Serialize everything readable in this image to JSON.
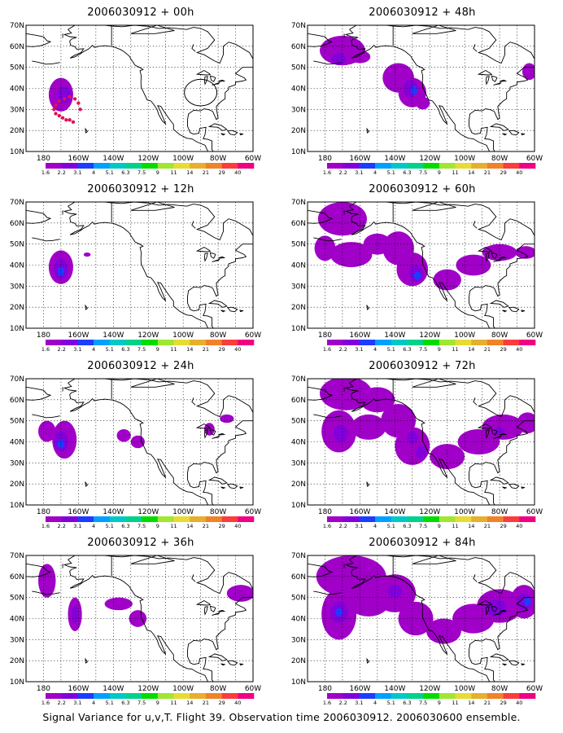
{
  "caption": "Signal Variance for u,v,T. Flight 39. Observation time 2006030912. 2006030600 ensemble.",
  "axes": {
    "lat_labels": [
      "70N",
      "60N",
      "50N",
      "40N",
      "30N",
      "20N",
      "10N"
    ],
    "lon_labels": [
      "180",
      "160W",
      "140W",
      "120W",
      "100W",
      "80W",
      "60W"
    ]
  },
  "colorbar": {
    "labels": [
      "1.6",
      "2.2",
      "3.1",
      "4",
      "5.1",
      "6.3",
      "7.5",
      "9",
      "11",
      "14",
      "21",
      "29",
      "40"
    ],
    "colors": [
      "#a000c8",
      "#8200dc",
      "#1e3cff",
      "#00a0ff",
      "#00c8c8",
      "#00d28c",
      "#00dc00",
      "#a0e632",
      "#e6dc32",
      "#e6af2d",
      "#f08228",
      "#fa3c3c",
      "#f00082"
    ]
  },
  "panels": [
    {
      "id": "p00",
      "title": "2006030912 + 00h",
      "col": 0,
      "row": 0
    },
    {
      "id": "p12",
      "title": "2006030912 + 12h",
      "col": 0,
      "row": 1
    },
    {
      "id": "p24",
      "title": "2006030912 + 24h",
      "col": 0,
      "row": 2
    },
    {
      "id": "p36",
      "title": "2006030912 + 36h",
      "col": 0,
      "row": 3
    },
    {
      "id": "p48",
      "title": "2006030912 + 48h",
      "col": 1,
      "row": 0
    },
    {
      "id": "p60",
      "title": "2006030912 + 60h",
      "col": 1,
      "row": 1
    },
    {
      "id": "p72",
      "title": "2006030912 + 72h",
      "col": 1,
      "row": 2
    },
    {
      "id": "p84",
      "title": "2006030912 + 84h",
      "col": 1,
      "row": 3
    }
  ],
  "fields": {
    "p00": [
      {
        "lon": -170,
        "lat": 37,
        "rx": 7,
        "ry": 8,
        "lvl": 0
      },
      {
        "lon": -168,
        "lat": 37,
        "rx": 4,
        "ry": 4,
        "lvl": 1
      }
    ],
    "p12": [
      {
        "lon": -170,
        "lat": 39,
        "rx": 7,
        "ry": 8,
        "lvl": 0
      },
      {
        "lon": -170,
        "lat": 38,
        "rx": 4,
        "ry": 5,
        "lvl": 1
      },
      {
        "lon": -170,
        "lat": 37,
        "rx": 2,
        "ry": 2,
        "lvl": 2
      },
      {
        "lon": -155,
        "lat": 45,
        "rx": 2,
        "ry": 1,
        "lvl": 0
      }
    ],
    "p24": [
      {
        "lon": -178,
        "lat": 45,
        "rx": 5,
        "ry": 5,
        "lvl": 0
      },
      {
        "lon": -168,
        "lat": 41,
        "rx": 7,
        "ry": 9,
        "lvl": 0
      },
      {
        "lon": -170,
        "lat": 40,
        "rx": 4,
        "ry": 5,
        "lvl": 1
      },
      {
        "lon": -170,
        "lat": 39,
        "rx": 2,
        "ry": 2,
        "lvl": 2
      },
      {
        "lon": -134,
        "lat": 43,
        "rx": 4,
        "ry": 3,
        "lvl": 0
      },
      {
        "lon": -126,
        "lat": 40,
        "rx": 4,
        "ry": 3,
        "lvl": 0
      },
      {
        "lon": -85,
        "lat": 46,
        "rx": 3,
        "ry": 3,
        "lvl": 0
      },
      {
        "lon": -75,
        "lat": 51,
        "rx": 4,
        "ry": 2,
        "lvl": 0
      }
    ],
    "p36": [
      {
        "lon": -178,
        "lat": 58,
        "rx": 5,
        "ry": 8,
        "lvl": 0
      },
      {
        "lon": -162,
        "lat": 42,
        "rx": 4,
        "ry": 8,
        "lvl": 0
      },
      {
        "lon": -162,
        "lat": 42,
        "rx": 2,
        "ry": 4,
        "lvl": 1
      },
      {
        "lon": -137,
        "lat": 47,
        "rx": 8,
        "ry": 3,
        "lvl": 0
      },
      {
        "lon": -126,
        "lat": 40,
        "rx": 5,
        "ry": 4,
        "lvl": 0
      },
      {
        "lon": -67,
        "lat": 52,
        "rx": 8,
        "ry": 4,
        "lvl": 0
      }
    ],
    "p48": [
      {
        "lon": -170,
        "lat": 58,
        "rx": 13,
        "ry": 7,
        "lvl": 0
      },
      {
        "lon": -160,
        "lat": 55,
        "rx": 6,
        "ry": 3,
        "lvl": 0
      },
      {
        "lon": -172,
        "lat": 54,
        "rx": 4,
        "ry": 3,
        "lvl": 1
      },
      {
        "lon": -138,
        "lat": 45,
        "rx": 9,
        "ry": 7,
        "lvl": 0
      },
      {
        "lon": -130,
        "lat": 38,
        "rx": 8,
        "ry": 7,
        "lvl": 0
      },
      {
        "lon": -131,
        "lat": 40,
        "rx": 4,
        "ry": 4,
        "lvl": 1
      },
      {
        "lon": -129,
        "lat": 39,
        "rx": 2,
        "ry": 2,
        "lvl": 2
      },
      {
        "lon": -124,
        "lat": 33,
        "rx": 4,
        "ry": 3,
        "lvl": 0
      },
      {
        "lon": -63,
        "lat": 48,
        "rx": 4,
        "ry": 4,
        "lvl": 0
      }
    ],
    "p60": [
      {
        "lon": -170,
        "lat": 62,
        "rx": 14,
        "ry": 8,
        "lvl": 0
      },
      {
        "lon": -180,
        "lat": 48,
        "rx": 6,
        "ry": 6,
        "lvl": 0
      },
      {
        "lon": -165,
        "lat": 45,
        "rx": 12,
        "ry": 6,
        "lvl": 0
      },
      {
        "lon": -150,
        "lat": 50,
        "rx": 8,
        "ry": 5,
        "lvl": 0
      },
      {
        "lon": -138,
        "lat": 48,
        "rx": 9,
        "ry": 8,
        "lvl": 0
      },
      {
        "lon": -130,
        "lat": 38,
        "rx": 9,
        "ry": 8,
        "lvl": 0
      },
      {
        "lon": -128,
        "lat": 36,
        "rx": 4,
        "ry": 4,
        "lvl": 1
      },
      {
        "lon": -127,
        "lat": 35,
        "rx": 2,
        "ry": 2,
        "lvl": 2
      },
      {
        "lon": -110,
        "lat": 33,
        "rx": 8,
        "ry": 5,
        "lvl": 0
      },
      {
        "lon": -95,
        "lat": 40,
        "rx": 10,
        "ry": 5,
        "lvl": 0
      },
      {
        "lon": -80,
        "lat": 46,
        "rx": 10,
        "ry": 4,
        "lvl": 0
      },
      {
        "lon": -65,
        "lat": 46,
        "rx": 6,
        "ry": 3,
        "lvl": 0
      }
    ],
    "p72": [
      {
        "lon": -168,
        "lat": 63,
        "rx": 15,
        "ry": 8,
        "lvl": 0
      },
      {
        "lon": -150,
        "lat": 60,
        "rx": 10,
        "ry": 6,
        "lvl": 0
      },
      {
        "lon": -172,
        "lat": 45,
        "rx": 10,
        "ry": 10,
        "lvl": 0
      },
      {
        "lon": -171,
        "lat": 44,
        "rx": 4,
        "ry": 4,
        "lvl": 1
      },
      {
        "lon": -155,
        "lat": 47,
        "rx": 10,
        "ry": 6,
        "lvl": 0
      },
      {
        "lon": -138,
        "lat": 50,
        "rx": 10,
        "ry": 8,
        "lvl": 0
      },
      {
        "lon": -130,
        "lat": 38,
        "rx": 10,
        "ry": 9,
        "lvl": 0
      },
      {
        "lon": -130,
        "lat": 42,
        "rx": 3,
        "ry": 3,
        "lvl": 1
      },
      {
        "lon": -125,
        "lat": 35,
        "rx": 3,
        "ry": 3,
        "lvl": 1
      },
      {
        "lon": -110,
        "lat": 33,
        "rx": 10,
        "ry": 6,
        "lvl": 0
      },
      {
        "lon": -92,
        "lat": 40,
        "rx": 12,
        "ry": 6,
        "lvl": 0
      },
      {
        "lon": -78,
        "lat": 47,
        "rx": 12,
        "ry": 6,
        "lvl": 0
      },
      {
        "lon": -64,
        "lat": 49,
        "rx": 6,
        "ry": 5,
        "lvl": 0
      },
      {
        "lon": -80,
        "lat": 45,
        "rx": 3,
        "ry": 2,
        "lvl": 1
      }
    ],
    "p84": [
      {
        "lon": -165,
        "lat": 60,
        "rx": 20,
        "ry": 10,
        "lvl": 0
      },
      {
        "lon": -172,
        "lat": 42,
        "rx": 10,
        "ry": 12,
        "lvl": 0
      },
      {
        "lon": -172,
        "lat": 43,
        "rx": 5,
        "ry": 5,
        "lvl": 1
      },
      {
        "lon": -172,
        "lat": 43,
        "rx": 2,
        "ry": 2,
        "lvl": 2
      },
      {
        "lon": -155,
        "lat": 48,
        "rx": 12,
        "ry": 7,
        "lvl": 0
      },
      {
        "lon": -140,
        "lat": 52,
        "rx": 12,
        "ry": 9,
        "lvl": 0
      },
      {
        "lon": -140,
        "lat": 53,
        "rx": 4,
        "ry": 3,
        "lvl": 1
      },
      {
        "lon": -128,
        "lat": 40,
        "rx": 10,
        "ry": 8,
        "lvl": 0
      },
      {
        "lon": -112,
        "lat": 34,
        "rx": 10,
        "ry": 6,
        "lvl": 0
      },
      {
        "lon": -95,
        "lat": 40,
        "rx": 12,
        "ry": 7,
        "lvl": 0
      },
      {
        "lon": -80,
        "lat": 46,
        "rx": 13,
        "ry": 8,
        "lvl": 0
      },
      {
        "lon": -82,
        "lat": 45,
        "rx": 6,
        "ry": 4,
        "lvl": 1
      },
      {
        "lon": -66,
        "lat": 48,
        "rx": 8,
        "ry": 8,
        "lvl": 0
      },
      {
        "lon": -66,
        "lat": 48,
        "rx": 4,
        "ry": 4,
        "lvl": 1
      },
      {
        "lon": -64,
        "lat": 48,
        "rx": 2,
        "ry": 2,
        "lvl": 2
      }
    ]
  },
  "flight_track": [
    {
      "lon": -174,
      "lat": 30
    },
    {
      "lon": -173,
      "lat": 28
    },
    {
      "lon": -171,
      "lat": 27
    },
    {
      "lon": -169,
      "lat": 26
    },
    {
      "lon": -167,
      "lat": 25
    },
    {
      "lon": -165,
      "lat": 25
    },
    {
      "lon": -163,
      "lat": 24
    },
    {
      "lon": -159,
      "lat": 30
    },
    {
      "lon": -160,
      "lat": 33
    },
    {
      "lon": -162,
      "lat": 35
    },
    {
      "lon": -165,
      "lat": 36
    },
    {
      "lon": -168,
      "lat": 35
    },
    {
      "lon": -171,
      "lat": 34
    },
    {
      "lon": -173,
      "lat": 32
    }
  ],
  "target_circle": {
    "lon": -90,
    "lat": 38,
    "r_deg": 6
  },
  "map_colors": {
    "coast": "#000000",
    "grid": "#000000",
    "frame": "#000000",
    "track": "#e0105a"
  }
}
